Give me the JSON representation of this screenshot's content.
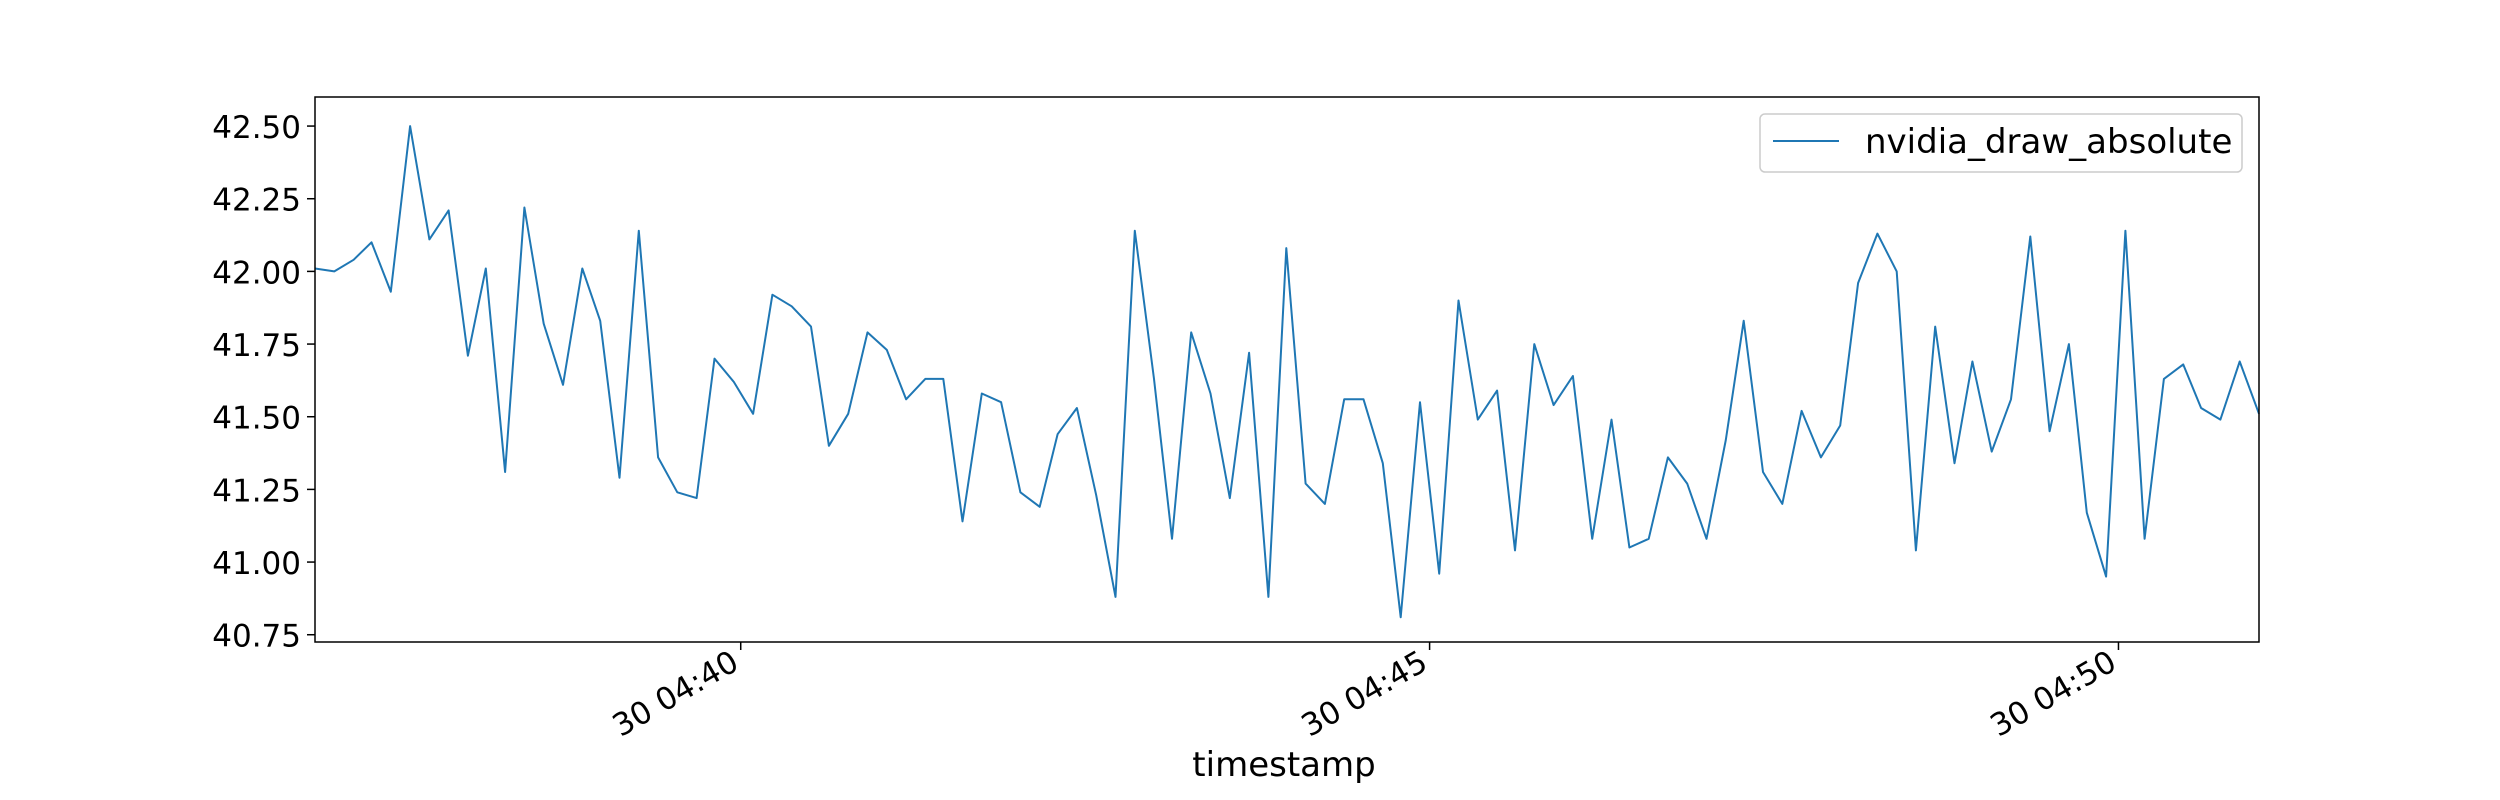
{
  "chart_data": {
    "type": "line",
    "title": "",
    "xlabel": "timestamp",
    "ylabel": "",
    "x_tick_labels": [
      "30 04:40",
      "30 04:45",
      "30 04:50"
    ],
    "y_tick_labels": [
      "40.75",
      "41.00",
      "41.25",
      "41.50",
      "41.75",
      "42.00",
      "42.25",
      "42.50"
    ],
    "y_ticks": [
      40.75,
      41.0,
      41.25,
      41.5,
      41.75,
      42.0,
      42.25,
      42.5
    ],
    "ylim": [
      40.725,
      42.6
    ],
    "xlim_minutes_offset_note": "",
    "x_axis_units": "minutes past 04:40 on day 30",
    "xlim": [
      -3.09,
      11.02
    ],
    "x_ticks": [
      0,
      5,
      10
    ],
    "grid": false,
    "legend": {
      "position": "top-right",
      "entries": [
        "nvidia_draw_absolute"
      ]
    },
    "series": [
      {
        "name": "nvidia_draw_absolute",
        "color": "#1f77b4",
        "x": [
          -3.09,
          -2.95,
          -2.81,
          -2.68,
          -2.54,
          -2.4,
          -2.26,
          -2.12,
          -1.98,
          -1.85,
          -1.71,
          -1.57,
          -1.43,
          -1.29,
          -1.15,
          -1.02,
          -0.88,
          -0.74,
          -0.6,
          -0.46,
          -0.32,
          -0.19,
          -0.05,
          0.09,
          0.23,
          0.37,
          0.51,
          0.64,
          0.78,
          0.92,
          1.06,
          1.2,
          1.34,
          1.47,
          1.61,
          1.75,
          1.89,
          2.03,
          2.17,
          2.3,
          2.44,
          2.58,
          2.72,
          2.86,
          3.0,
          3.13,
          3.27,
          3.41,
          3.55,
          3.69,
          3.83,
          3.96,
          4.1,
          4.24,
          4.38,
          4.52,
          4.66,
          4.79,
          4.93,
          5.07,
          5.21,
          5.35,
          5.49,
          5.62,
          5.76,
          5.9,
          6.04,
          6.18,
          6.32,
          6.45,
          6.59,
          6.73,
          6.87,
          7.01,
          7.15,
          7.28,
          7.42,
          7.56,
          7.7,
          7.84,
          7.98,
          8.11,
          8.25,
          8.39,
          8.53,
          8.67,
          8.81,
          8.94,
          9.08,
          9.22,
          9.36,
          9.5,
          9.64,
          9.77,
          9.91,
          10.05,
          10.19,
          10.33,
          10.47,
          10.6,
          10.74,
          10.88,
          11.02
        ],
        "values": [
          42.01,
          42.0,
          42.04,
          42.1,
          41.93,
          42.5,
          42.11,
          42.21,
          41.71,
          42.01,
          41.31,
          42.22,
          41.82,
          41.61,
          42.01,
          41.83,
          41.29,
          42.14,
          41.36,
          41.24,
          41.22,
          41.7,
          41.62,
          41.51,
          41.92,
          41.88,
          41.81,
          41.4,
          41.51,
          41.79,
          41.73,
          41.56,
          41.63,
          41.63,
          41.14,
          41.58,
          41.55,
          41.24,
          41.19,
          41.44,
          41.53,
          41.23,
          40.88,
          42.14,
          41.63,
          41.08,
          41.79,
          41.58,
          41.22,
          41.72,
          40.88,
          42.08,
          41.27,
          41.2,
          41.56,
          41.56,
          41.34,
          40.81,
          41.55,
          40.96,
          41.9,
          41.49,
          41.59,
          41.04,
          41.75,
          41.54,
          41.64,
          41.08,
          41.49,
          41.05,
          41.08,
          41.36,
          41.27,
          41.08,
          41.42,
          41.83,
          41.31,
          41.2,
          41.52,
          41.36,
          41.47,
          41.96,
          42.13,
          42.0,
          41.04,
          41.81,
          41.34,
          41.69,
          41.38,
          41.56,
          42.12,
          41.45,
          41.75,
          41.17,
          40.95,
          42.14,
          41.08,
          41.63,
          41.68,
          41.53,
          41.49,
          41.69,
          41.51
        ]
      }
    ]
  }
}
